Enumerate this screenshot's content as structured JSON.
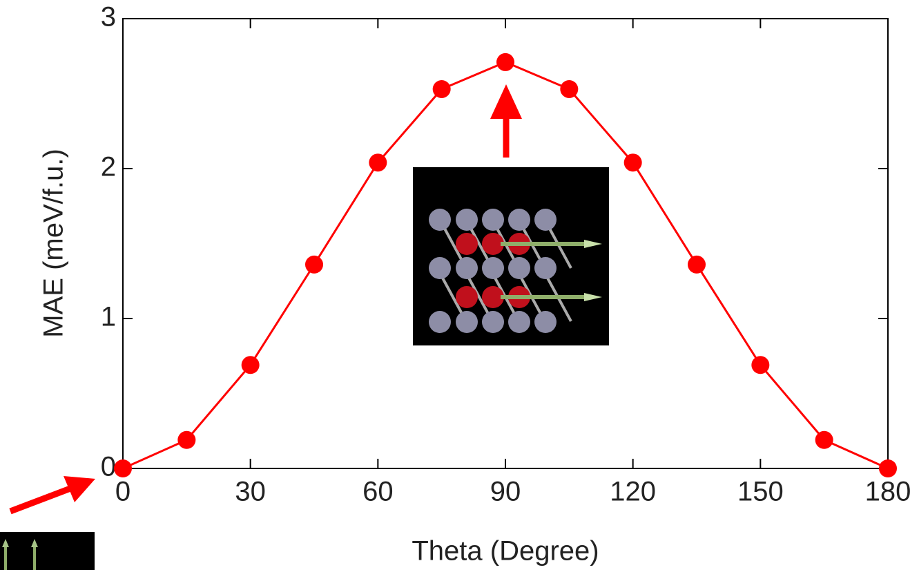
{
  "chart_data": {
    "type": "line",
    "xlabel": "Theta (Degree)",
    "ylabel": "MAE (meV/f.u.)",
    "x": [
      0,
      15,
      30,
      45,
      60,
      75,
      90,
      105,
      120,
      135,
      150,
      165,
      180
    ],
    "values": [
      0,
      0.19,
      0.69,
      1.36,
      2.04,
      2.53,
      2.71,
      2.53,
      2.04,
      1.36,
      0.69,
      0.19,
      0
    ],
    "color": "#ff0000",
    "xlim": [
      0,
      180
    ],
    "xticks": [
      0,
      30,
      60,
      90,
      120,
      150,
      180
    ],
    "ylim": [
      0,
      3
    ],
    "yticks": [
      0,
      1,
      2,
      3
    ]
  }
}
